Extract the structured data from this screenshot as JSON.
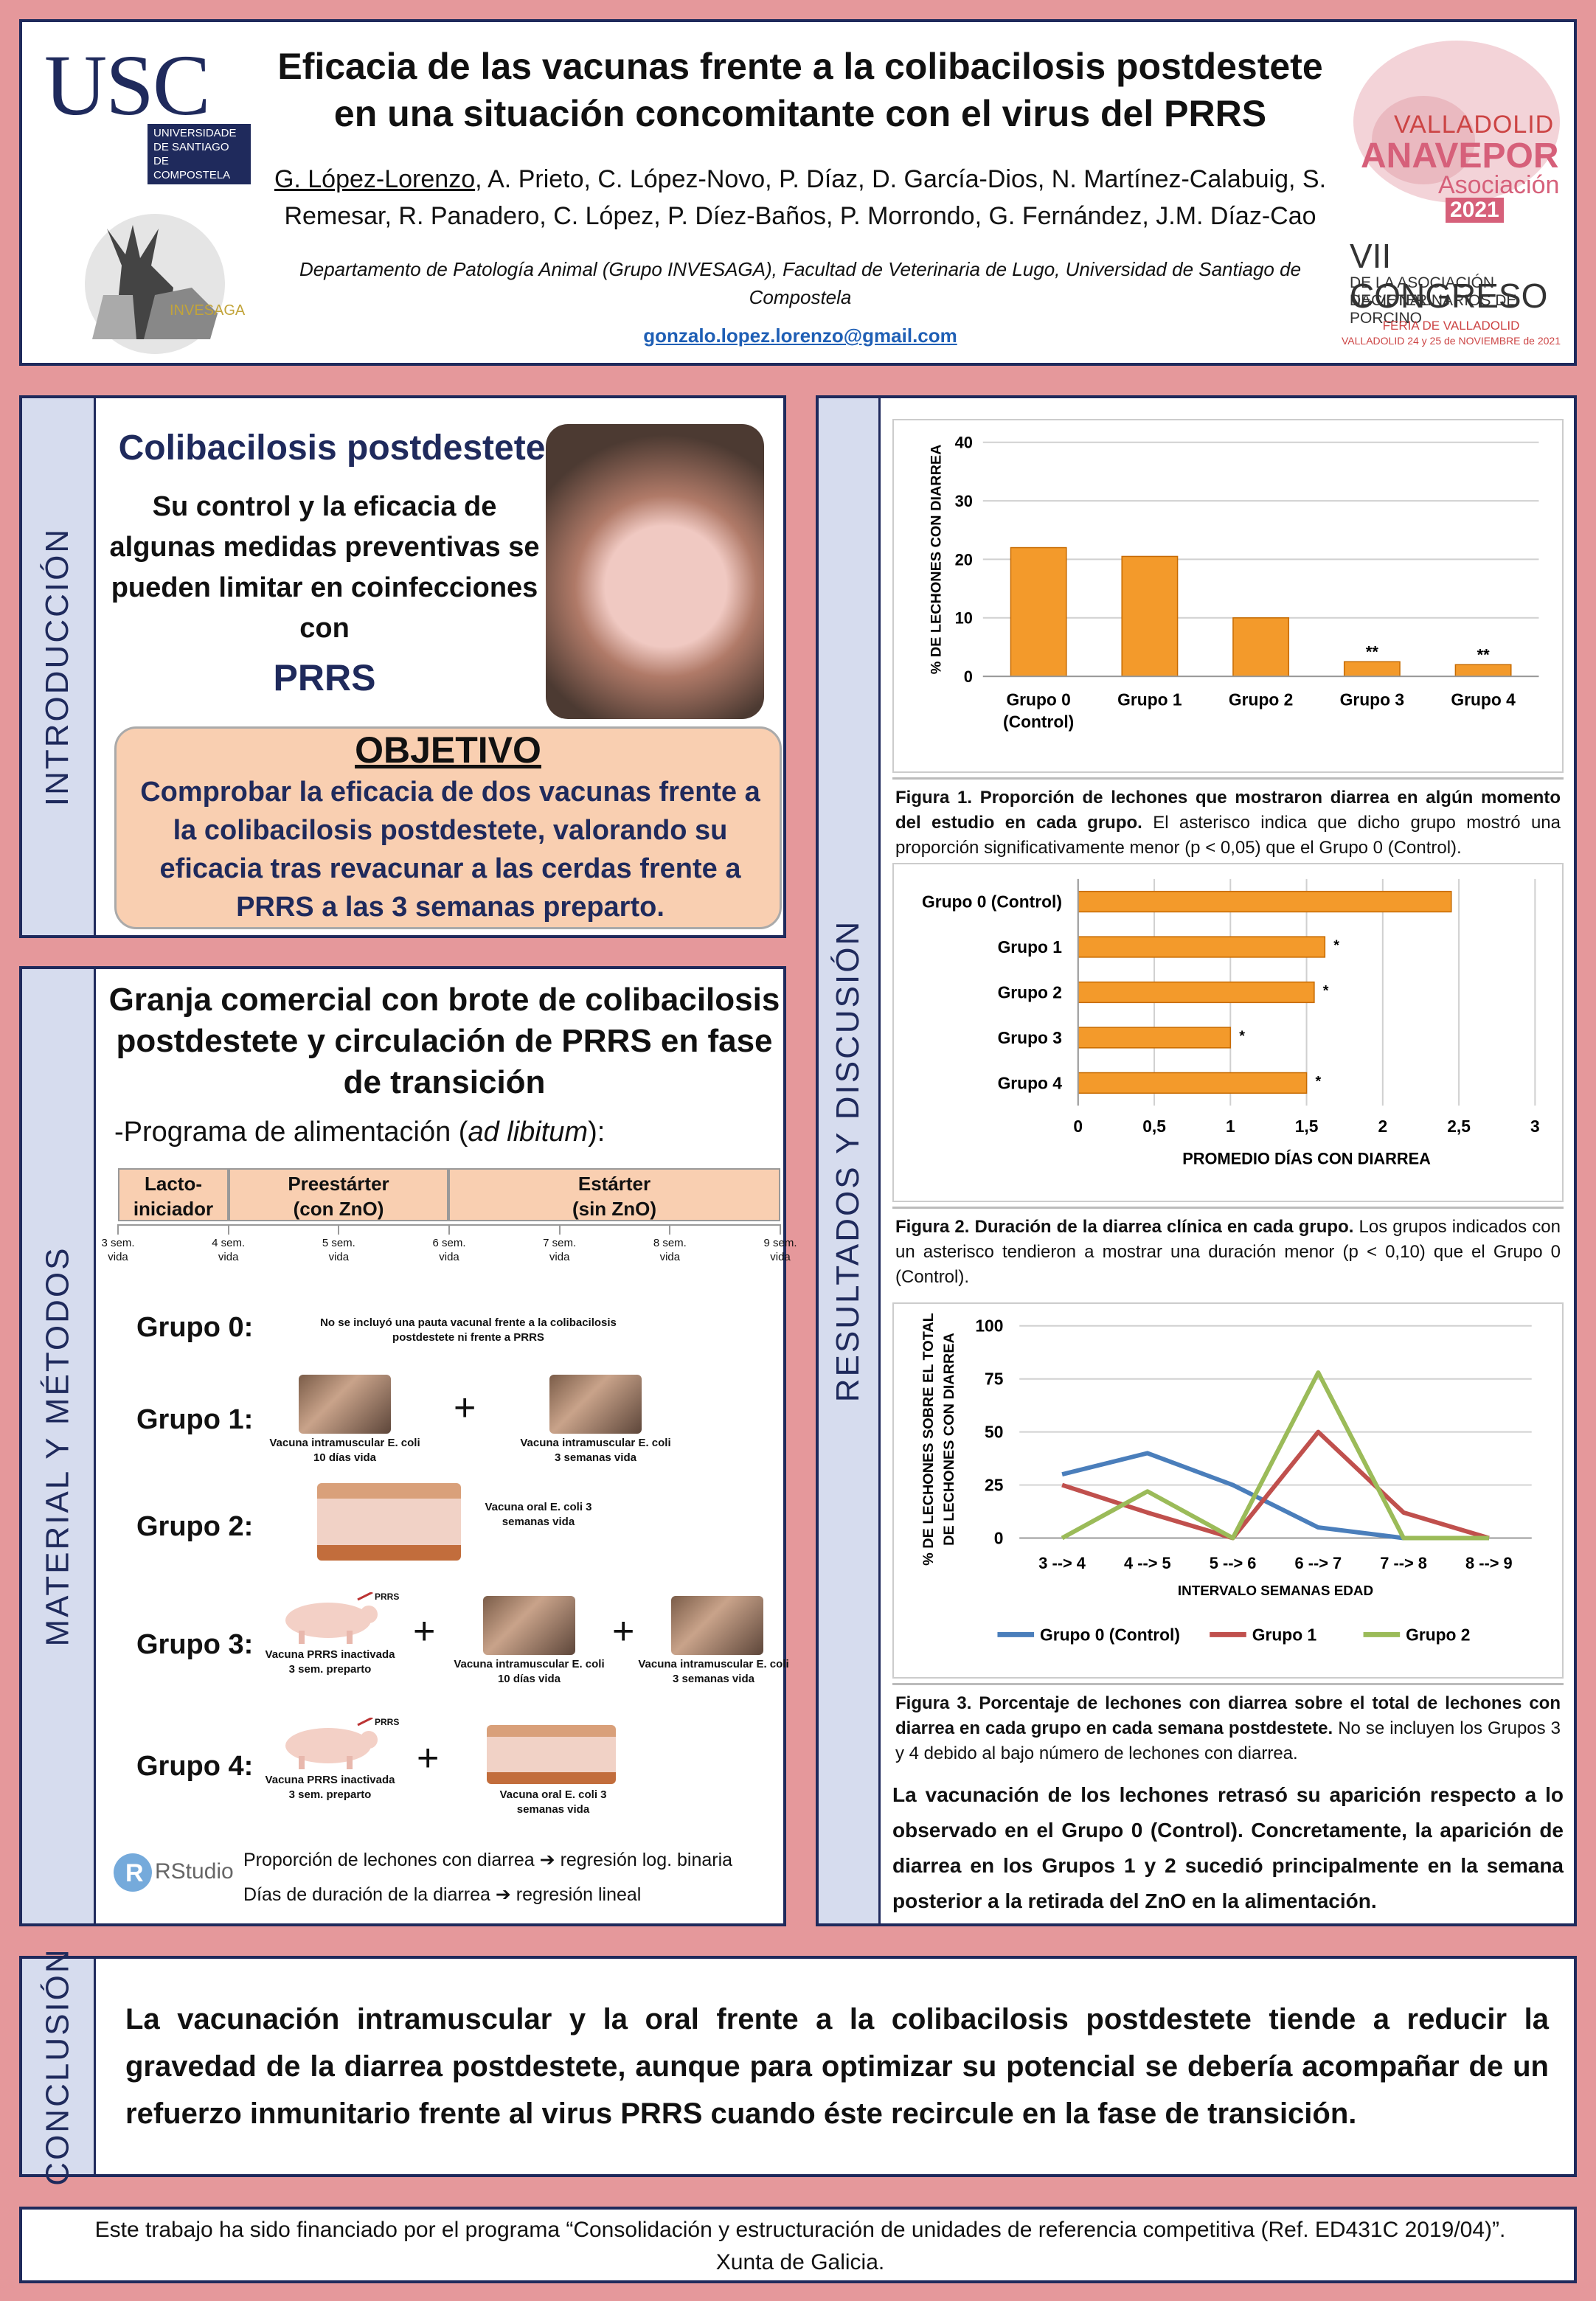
{
  "header": {
    "logo_text": "USC",
    "logo_sub": [
      "UNIVERSIDADE",
      "DE SANTIAGO",
      "DE COMPOSTELA"
    ],
    "invesaga": "INVESAGA",
    "title": "Eficacia de las vacunas frente a la colibacilosis postdestete en una situación concomitante con el virus del PRRS",
    "authors_first": "G. López-Lorenzo",
    "authors_rest": ", A. Prieto, C. López-Novo, P. Díaz, D. García-Dios, N. Martínez-Calabuig, S. Remesar, R. Panadero, C. López, P. Díez-Baños, P. Morrondo, G. Fernández, J.M. Díaz-Cao",
    "affiliation": "Departamento de Patología Animal (Grupo INVESAGA), Facultad de Veterinaria de Lugo, Universidad de Santiago de Compostela",
    "email": "gonzalo.lopez.lorenzo@gmail.com",
    "congress": {
      "city": "VALLADOLID",
      "org": "ANAVEPOR",
      "asoc": "Asociación",
      "year": "2021",
      "title": "VII CONGRESO",
      "sub1": "DE LA ASOCIACIÓN NACIONAL",
      "sub2": "DE VETERINARIOS DE PORCINO",
      "feria": "FERIA DE VALLADOLID",
      "dates": "VALLADOLID 24 y 25 de NOVIEMBRE de 2021"
    }
  },
  "intro": {
    "ribbon": "INTRODUCCIÓN",
    "heading": "Colibacilosis postdestete",
    "text": "Su control y la eficacia de algunas medidas preventivas se pueden limitar en coinfecciones con",
    "prrs": "PRRS",
    "objetivo_title": "OBJETIVO",
    "objetivo_text": "Comprobar la eficacia de dos vacunas frente a la colibacilosis postdestete, valorando su eficacia tras revacunar a las cerdas frente a PRRS a las 3 semanas preparto."
  },
  "methods": {
    "ribbon": "MATERIAL Y MÉTODOS",
    "heading": "Granja comercial con brote de colibacilosis postdestete y circulación de PRRS en fase de transición",
    "feed_prefix": "-Programa de alimentación (",
    "feed_italic": "ad libitum",
    "feed_suffix": "):",
    "phases": [
      {
        "l1": "Lacto-",
        "l2": "iniciador"
      },
      {
        "l1": "Preestárter",
        "l2": "(con ZnO)"
      },
      {
        "l1": "Estárter",
        "l2": "(sin ZnO)"
      }
    ],
    "weeks": [
      {
        "l1": "3 sem.",
        "l2": "vida"
      },
      {
        "l1": "4 sem.",
        "l2": "vida"
      },
      {
        "l1": "5 sem.",
        "l2": "vida"
      },
      {
        "l1": "6 sem.",
        "l2": "vida"
      },
      {
        "l1": "7 sem.",
        "l2": "vida"
      },
      {
        "l1": "8 sem.",
        "l2": "vida"
      },
      {
        "l1": "9 sem.",
        "l2": "vida"
      }
    ],
    "groups": [
      "Grupo 0:",
      "Grupo 1:",
      "Grupo 2:",
      "Grupo 3:",
      "Grupo 4:"
    ],
    "g0_note": "No se incluyó una pauta vacunal frente a la colibacilosis postdestete ni frente a PRRS",
    "vac_im_10": "Vacuna intramuscular E. coli 10 días vida",
    "vac_im_3": "Vacuna intramuscular E. coli 3 semanas vida",
    "vac_oral": "Vacuna oral E. coli 3 semanas vida",
    "vac_prrs": "Vacuna PRRS inactivada 3 sem. preparto",
    "prrs_tag": "PRRS",
    "plus": "+",
    "rstudio": "RStudio",
    "stats1": "Proporción de lechones con diarrea",
    "stats1b": "regresión log. binaria",
    "stats2": "Días de duración de la diarrea",
    "stats2b": "regresión lineal"
  },
  "results": {
    "ribbon": "RESULTADOS Y DISCUSIÓN",
    "fig1_caption_b": "Figura 1. Proporción de lechones que mostraron diarrea en algún momento del estudio en cada grupo.",
    "fig1_caption": " El asterisco indica que dicho grupo mostró una proporción significativamente menor (p < 0,05) que el Grupo 0 (Control).",
    "fig2_caption_b": "Figura 2. Duración de la diarrea clínica en cada grupo.",
    "fig2_caption": " Los grupos indicados con un asterisco tendieron a mostrar una duración menor (p < 0,10) que el Grupo 0 (Control).",
    "fig3_caption_b": "Figura 3. Porcentaje de lechones con diarrea sobre el total de lechones con diarrea en cada grupo en cada semana postdestete.",
    "fig3_caption": " No se incluyen los Grupos 3 y 4 debido al bajo número de lechones con diarrea.",
    "discussion": "La vacunación de los lechones retrasó su aparición respecto a lo observado en el Grupo 0 (Control). Concretamente, la aparición de diarrea en los Grupos 1 y 2 sucedió principalmente en la semana posterior a la retirada del ZnO en la alimentación."
  },
  "conclusion": {
    "ribbon": "CONCLUSIÓN",
    "text": "La vacunación intramuscular y la oral frente a la colibacilosis postdestete tiende a reducir la gravedad de la diarrea postdestete, aunque para optimizar su potencial se debería acompañar de un refuerzo inmunitario frente al virus PRRS cuando éste recircule en la fase de transición."
  },
  "footer": {
    "text": "Este trabajo ha sido financiado por el programa “Consolidación y estructuración de unidades de referencia competitiva (Ref. ED431C 2019/04)”. Xunta de Galicia."
  },
  "chart_data": [
    {
      "type": "bar",
      "categories": [
        "Grupo 0 (Control)",
        "Grupo 1",
        "Grupo 2",
        "Grupo 3",
        "Grupo 4"
      ],
      "values": [
        22,
        20.5,
        10,
        2.5,
        2
      ],
      "annotations": [
        "",
        "",
        "",
        "**",
        "**"
      ],
      "ylabel": "% DE LECHONES CON DIARREA",
      "ylim": [
        0,
        40
      ],
      "yticks": [
        "0",
        "10",
        "20",
        "30",
        "40"
      ],
      "bar_color": "#f39a2b",
      "grid": true
    },
    {
      "type": "bar",
      "orientation": "horizontal",
      "categories": [
        "Grupo 0 (Control)",
        "Grupo 1",
        "Grupo 2",
        "Grupo 3",
        "Grupo 4"
      ],
      "values": [
        2.45,
        1.62,
        1.55,
        1.0,
        1.5
      ],
      "annotations": [
        "",
        "*",
        "*",
        "*",
        "*"
      ],
      "xlabel": "PROMEDIO DÍAS CON DIARREA",
      "xlim": [
        0,
        3
      ],
      "xticks": [
        "0",
        "0,5",
        "1",
        "1,5",
        "2",
        "2,5",
        "3"
      ],
      "bar_color": "#f39a2b",
      "grid": true
    },
    {
      "type": "line",
      "x": [
        "3 --> 4",
        "4 --> 5",
        "5 --> 6",
        "6 --> 7",
        "7 --> 8",
        "8 --> 9"
      ],
      "series": [
        {
          "name": "Grupo 0 (Control)",
          "values": [
            30,
            40,
            25,
            5,
            0,
            0
          ],
          "color": "#4a7ebb"
        },
        {
          "name": "Grupo 1",
          "values": [
            25,
            12,
            0,
            50,
            12,
            0
          ],
          "color": "#c0504d"
        },
        {
          "name": "Grupo 2",
          "values": [
            0,
            22,
            0,
            78,
            0,
            0
          ],
          "color": "#9bbb59"
        }
      ],
      "xlabel": "INTERVALO SEMANAS EDAD",
      "ylabel": "% DE LECHONES SOBRE EL TOTAL DE LECHONES CON DIARREA",
      "ylim": [
        0,
        100
      ],
      "yticks": [
        "0",
        "25",
        "50",
        "75",
        "100"
      ],
      "legend": "bottom",
      "grid": true
    }
  ]
}
